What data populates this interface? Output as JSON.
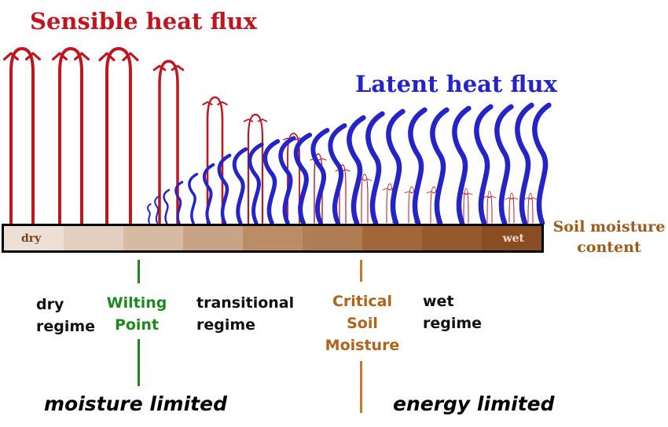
{
  "titles": {
    "sensible": "Sensible heat flux",
    "latent": "Latent heat flux"
  },
  "bar": {
    "dry_label": "dry",
    "wet_label": "wet",
    "segment_colors": [
      "#ecdfd6",
      "#e2cfc0",
      "#d6baa2",
      "#c9a385",
      "#bb8d66",
      "#af7c53",
      "#a16739",
      "#96592b",
      "#8a4d23"
    ]
  },
  "soil_moisture_label": [
    "Soil moisture",
    "content"
  ],
  "regimes": {
    "dry": [
      "dry",
      "regime"
    ],
    "wilting_point": [
      "Wilting",
      "Point"
    ],
    "transitional": [
      "transitional",
      "regime"
    ],
    "critical": [
      "Critical",
      "Soil",
      "Moisture"
    ],
    "wet": [
      "wet",
      "regime"
    ]
  },
  "limits": {
    "moisture": "moisture limited",
    "energy": "energy limited"
  },
  "colors": {
    "sensible": "#c0161f",
    "latent": "#2424c8",
    "wilting": "#1c8a1c",
    "critical": "#b0641a",
    "soil_text": "#a05a1a"
  }
}
